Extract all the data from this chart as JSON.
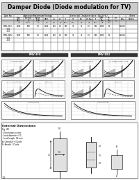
{
  "title": "Damper Diode (Diode modulation for TV)",
  "page_bg": "#f5f5f5",
  "title_bg": "#cccccc",
  "white": "#ffffff",
  "grid_color": "#999999",
  "dark": "#222222",
  "mid": "#666666",
  "light_gray": "#dddddd",
  "graph_fill": "#888888",
  "border": "#444444"
}
